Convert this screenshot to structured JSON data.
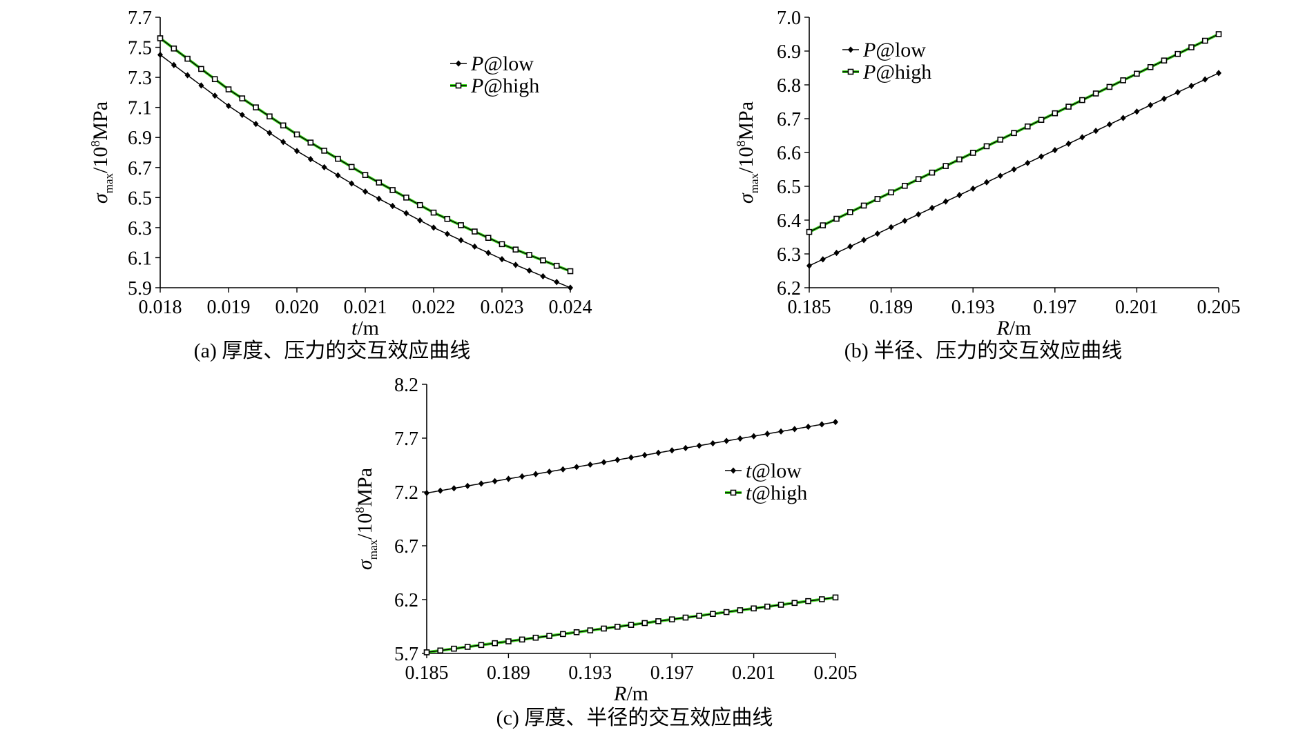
{
  "chart_data": [
    {
      "id": "a",
      "type": "line",
      "caption": "(a) 厚度、压力的交互效应曲线",
      "xlabel_var": "t",
      "xlabel_unit": "/m",
      "ylabel_sym": "σ",
      "ylabel_sub": "max",
      "ylabel_unit_pre": "/10",
      "ylabel_unit_exp": "8",
      "ylabel_unit_post": "MPa",
      "xlim": [
        0.018,
        0.024
      ],
      "ylim": [
        5.9,
        7.7
      ],
      "xticks": [
        0.018,
        0.019,
        0.02,
        0.021,
        0.022,
        0.023,
        0.024
      ],
      "xtick_labels": [
        "0.018",
        "0.019",
        "0.020",
        "0.021",
        "0.022",
        "0.023",
        "0.024"
      ],
      "yticks": [
        5.9,
        6.1,
        6.3,
        6.5,
        6.7,
        6.9,
        7.1,
        7.3,
        7.5,
        7.7
      ],
      "ytick_labels": [
        "5.9",
        "6.1",
        "6.3",
        "6.5",
        "6.7",
        "6.9",
        "7.1",
        "7.3",
        "7.5",
        "7.7"
      ],
      "legend_position": "top-right",
      "series": [
        {
          "name_var": "P",
          "name_rest": "@low",
          "color": "#000000",
          "marker": "diamond",
          "x": [
            0.018,
            0.019,
            0.02,
            0.021,
            0.022,
            0.023,
            0.024
          ],
          "y": [
            7.45,
            7.11,
            6.81,
            6.54,
            6.3,
            6.09,
            5.9
          ]
        },
        {
          "name_var": "P",
          "name_rest": "@high",
          "color": "#3ddc1f",
          "marker": "square",
          "x": [
            0.018,
            0.019,
            0.02,
            0.021,
            0.022,
            0.023,
            0.024
          ],
          "y": [
            7.56,
            7.22,
            6.92,
            6.65,
            6.4,
            6.19,
            6.01
          ]
        }
      ]
    },
    {
      "id": "b",
      "type": "line",
      "caption": "(b) 半径、压力的交互效应曲线",
      "xlabel_var": "R",
      "xlabel_unit": "/m",
      "ylabel_sym": "σ",
      "ylabel_sub": "max",
      "ylabel_unit_pre": "/10",
      "ylabel_unit_exp": "8",
      "ylabel_unit_post": "MPa",
      "xlim": [
        0.185,
        0.205
      ],
      "ylim": [
        6.2,
        7.0
      ],
      "xticks": [
        0.185,
        0.189,
        0.193,
        0.197,
        0.201,
        0.205
      ],
      "xtick_labels": [
        "0.185",
        "0.189",
        "0.193",
        "0.197",
        "0.201",
        "0.205"
      ],
      "yticks": [
        6.2,
        6.3,
        6.4,
        6.5,
        6.6,
        6.7,
        6.8,
        6.9,
        7.0
      ],
      "ytick_labels": [
        "6.2",
        "6.3",
        "6.4",
        "6.5",
        "6.6",
        "6.7",
        "6.8",
        "6.9",
        "7.0"
      ],
      "legend_position": "top-left",
      "series": [
        {
          "name_var": "P",
          "name_rest": "@low",
          "color": "#000000",
          "marker": "diamond",
          "x": [
            0.185,
            0.205
          ],
          "y": [
            6.265,
            6.835
          ]
        },
        {
          "name_var": "P",
          "name_rest": "@high",
          "color": "#3ddc1f",
          "marker": "square",
          "x": [
            0.185,
            0.205
          ],
          "y": [
            6.365,
            6.95
          ]
        }
      ]
    },
    {
      "id": "c",
      "type": "line",
      "caption": "(c) 厚度、半径的交互效应曲线",
      "xlabel_var": "R",
      "xlabel_unit": "/m",
      "ylabel_sym": "σ",
      "ylabel_sub": "max",
      "ylabel_unit_pre": "/10",
      "ylabel_unit_exp": "8",
      "ylabel_unit_post": "MPa",
      "xlim": [
        0.185,
        0.205
      ],
      "ylim": [
        5.7,
        8.2
      ],
      "xticks": [
        0.185,
        0.189,
        0.193,
        0.197,
        0.201,
        0.205
      ],
      "xtick_labels": [
        "0.185",
        "0.189",
        "0.193",
        "0.197",
        "0.201",
        "0.205"
      ],
      "yticks": [
        5.7,
        6.2,
        6.7,
        7.2,
        7.7,
        8.2
      ],
      "ytick_labels": [
        "5.7",
        "6.2",
        "6.7",
        "7.2",
        "7.7",
        "8.2"
      ],
      "legend_position": "right",
      "series": [
        {
          "name_var": "t",
          "name_rest": "@low",
          "color": "#000000",
          "marker": "diamond",
          "x": [
            0.185,
            0.205
          ],
          "y": [
            7.19,
            7.85
          ]
        },
        {
          "name_var": "t",
          "name_rest": "@high",
          "color": "#3ddc1f",
          "marker": "square",
          "x": [
            0.185,
            0.205
          ],
          "y": [
            5.71,
            6.22
          ]
        }
      ]
    }
  ]
}
